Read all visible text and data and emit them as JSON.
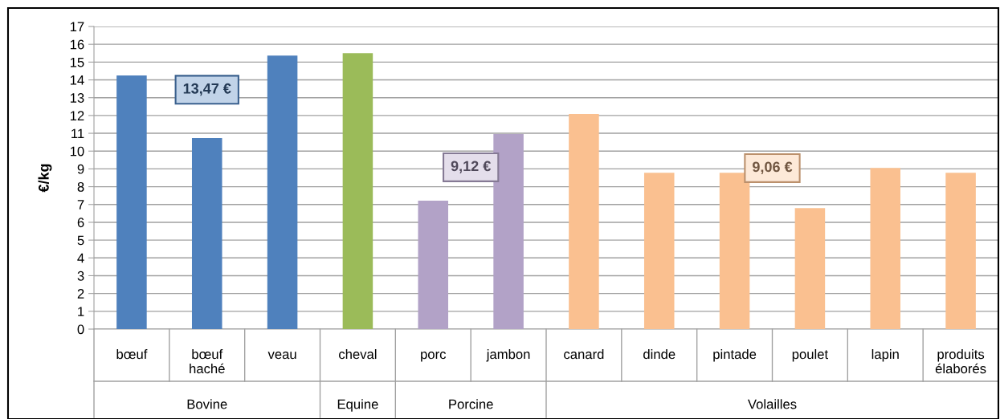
{
  "chart_data": {
    "type": "bar",
    "ylabel": "€/kg",
    "categories": [
      "bœuf",
      "bœuf\nhaché",
      "veau",
      "cheval",
      "porc",
      "jambon",
      "canard",
      "dinde",
      "pintade",
      "poulet",
      "lapin",
      "produits\nélaborés"
    ],
    "values": [
      14.25,
      10.73,
      15.36,
      15.5,
      7.22,
      10.96,
      12.08,
      8.78,
      8.78,
      6.8,
      9.05,
      8.78
    ],
    "colors": [
      "#4f81bd",
      "#4f81bd",
      "#4f81bd",
      "#9bbb59",
      "#b2a2c7",
      "#b2a2c7",
      "#fac090",
      "#fac090",
      "#fac090",
      "#fac090",
      "#fac090",
      "#fac090"
    ],
    "ylim": [
      0,
      17
    ],
    "yticks": [
      0,
      1,
      2,
      3,
      4,
      5,
      6,
      7,
      8,
      9,
      10,
      11,
      12,
      13,
      14,
      15,
      16,
      17
    ],
    "grid": "y",
    "legend": false,
    "annotations": [
      "Bovine",
      "Equine",
      "Porcine",
      "Volailles",
      "13,47 €",
      "9,12 €",
      "9,06 €"
    ]
  }
}
